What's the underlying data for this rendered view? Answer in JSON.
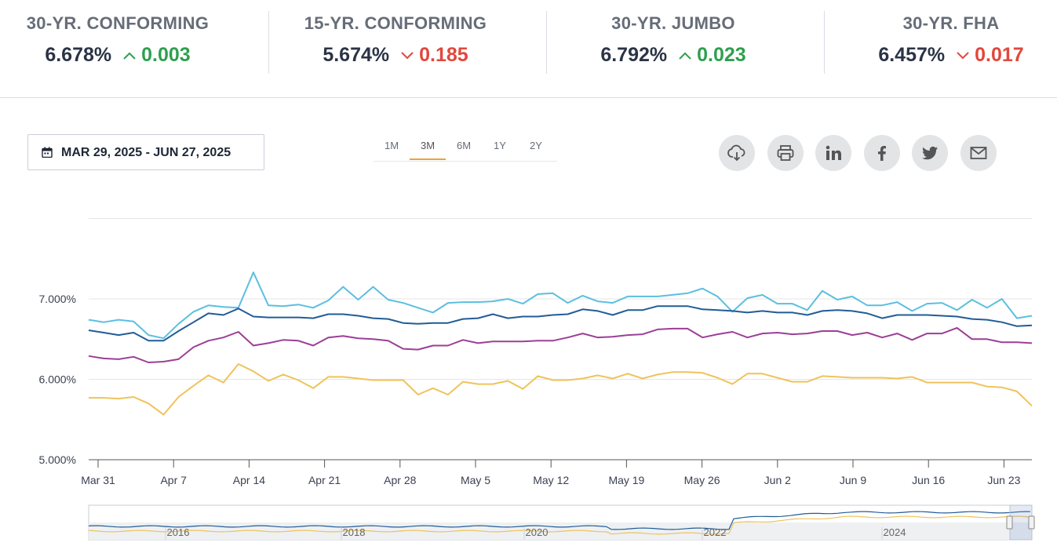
{
  "stats": [
    {
      "label": "30-YR. CONFORMING",
      "rate": "6.678%",
      "change": "0.003",
      "direction": "up"
    },
    {
      "label": "15-YR. CONFORMING",
      "rate": "5.674%",
      "change": "0.185",
      "direction": "down"
    },
    {
      "label": "30-YR. JUMBO",
      "rate": "6.792%",
      "change": "0.023",
      "direction": "up"
    },
    {
      "label": "30-YR. FHA",
      "rate": "6.457%",
      "change": "0.017",
      "direction": "down"
    }
  ],
  "date_range": "MAR 29, 2025 - JUN 27, 2025",
  "ranges": [
    {
      "label": "1M"
    },
    {
      "label": "3M",
      "active": true
    },
    {
      "label": "6M"
    },
    {
      "label": "1Y"
    },
    {
      "label": "2Y"
    }
  ],
  "share_icons": [
    "download-icon",
    "print-icon",
    "linkedin-icon",
    "facebook-icon",
    "twitter-icon",
    "email-icon"
  ],
  "colors": {
    "up": "#2e9f4f",
    "down": "#e0483c",
    "series_jumbo": "#5bbfe0",
    "series_30yr": "#225c96",
    "series_fha": "#9b3f96",
    "series_15yr": "#efc35b",
    "active_tab": "#e8a33c"
  },
  "chart_data": {
    "type": "line",
    "y_ticks": [
      "5.000%",
      "6.000%",
      "7.000%"
    ],
    "ylim": [
      5.0,
      8.0
    ],
    "x_ticks": [
      "Mar 31",
      "Apr 7",
      "Apr 14",
      "Apr 21",
      "Apr 28",
      "May 5",
      "May 12",
      "May 19",
      "May 26",
      "Jun 2",
      "Jun 9",
      "Jun 16",
      "Jun 23"
    ],
    "x_start": "Mar 31",
    "series": [
      {
        "key": "jumbo",
        "color": "#5bbfe0",
        "values": [
          6.74,
          6.71,
          6.74,
          6.72,
          6.55,
          6.51,
          6.69,
          6.84,
          6.92,
          6.9,
          6.89,
          7.33,
          6.92,
          6.91,
          6.93,
          6.89,
          6.98,
          7.15,
          6.99,
          7.15,
          6.99,
          6.95,
          6.89,
          6.83,
          6.95,
          6.96,
          6.96,
          6.97,
          7.0,
          6.94,
          7.06,
          7.07,
          6.95,
          7.04,
          6.97,
          6.95,
          7.03,
          7.03,
          7.03,
          7.05,
          7.07,
          7.13,
          7.03,
          6.84,
          7.01,
          7.05,
          6.94,
          6.94,
          6.86,
          7.1,
          6.99,
          7.03,
          6.92,
          6.92,
          6.96,
          6.85,
          6.94,
          6.95,
          6.86,
          6.99,
          6.89,
          7.0,
          6.76,
          6.79
        ]
      },
      {
        "key": "30yr",
        "color": "#225c96",
        "values": [
          6.61,
          6.58,
          6.55,
          6.58,
          6.48,
          6.48,
          6.6,
          6.71,
          6.82,
          6.8,
          6.88,
          6.78,
          6.77,
          6.77,
          6.77,
          6.76,
          6.81,
          6.81,
          6.79,
          6.76,
          6.75,
          6.7,
          6.69,
          6.7,
          6.7,
          6.75,
          6.76,
          6.81,
          6.76,
          6.78,
          6.78,
          6.8,
          6.81,
          6.87,
          6.85,
          6.8,
          6.86,
          6.86,
          6.91,
          6.91,
          6.91,
          6.87,
          6.86,
          6.85,
          6.83,
          6.85,
          6.83,
          6.83,
          6.8,
          6.85,
          6.86,
          6.85,
          6.82,
          6.76,
          6.8,
          6.8,
          6.8,
          6.79,
          6.78,
          6.75,
          6.74,
          6.71,
          6.66,
          6.67
        ]
      },
      {
        "key": "fha",
        "color": "#9b3f96",
        "values": [
          6.29,
          6.26,
          6.25,
          6.28,
          6.21,
          6.22,
          6.25,
          6.4,
          6.48,
          6.52,
          6.59,
          6.42,
          6.45,
          6.49,
          6.48,
          6.42,
          6.52,
          6.54,
          6.51,
          6.5,
          6.48,
          6.38,
          6.37,
          6.42,
          6.42,
          6.49,
          6.45,
          6.47,
          6.47,
          6.47,
          6.48,
          6.48,
          6.52,
          6.57,
          6.52,
          6.53,
          6.55,
          6.56,
          6.62,
          6.63,
          6.63,
          6.52,
          6.56,
          6.59,
          6.52,
          6.57,
          6.58,
          6.56,
          6.57,
          6.6,
          6.6,
          6.55,
          6.58,
          6.52,
          6.57,
          6.49,
          6.57,
          6.57,
          6.64,
          6.5,
          6.5,
          6.46,
          6.46,
          6.45
        ]
      },
      {
        "key": "15yr",
        "color": "#efc35b",
        "values": [
          5.77,
          5.77,
          5.76,
          5.78,
          5.7,
          5.56,
          5.78,
          5.92,
          6.05,
          5.96,
          6.19,
          6.1,
          5.98,
          6.06,
          5.99,
          5.89,
          6.03,
          6.03,
          6.01,
          5.99,
          5.99,
          5.99,
          5.81,
          5.89,
          5.81,
          5.97,
          5.94,
          5.94,
          5.98,
          5.88,
          6.04,
          5.99,
          5.99,
          6.01,
          6.05,
          6.01,
          6.07,
          6.01,
          6.06,
          6.09,
          6.09,
          6.08,
          6.02,
          5.94,
          6.07,
          6.07,
          6.02,
          5.97,
          5.97,
          6.04,
          6.03,
          6.02,
          6.02,
          6.02,
          6.01,
          6.03,
          5.96,
          5.96,
          5.96,
          5.96,
          5.91,
          5.9,
          5.85,
          5.67
        ]
      }
    ],
    "navigator": {
      "labels": [
        "2016",
        "2018",
        "2020",
        "2022",
        "2024"
      ]
    }
  }
}
